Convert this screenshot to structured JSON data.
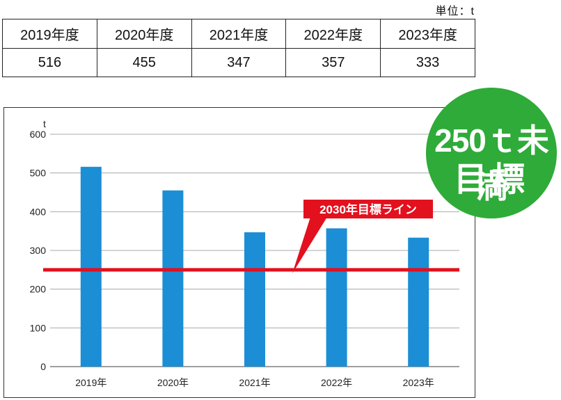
{
  "unit_label": "単位：t",
  "table": {
    "headers": [
      "2019年度",
      "2020年度",
      "2021年度",
      "2022年度",
      "2023年度"
    ],
    "values": [
      "516",
      "455",
      "347",
      "357",
      "333"
    ]
  },
  "badge": {
    "line1": "250ｔ未満",
    "line2": "目標",
    "color": "#2eab38"
  },
  "colors": {
    "bar": "#1b8ed5",
    "target_line": "#e3101e",
    "grid": "#a8a8a8"
  },
  "chart_data": {
    "type": "bar",
    "categories": [
      "2019年",
      "2020年",
      "2021年",
      "2022年",
      "2023年"
    ],
    "values": [
      516,
      455,
      347,
      357,
      333
    ],
    "ylabel": "t",
    "ylim": [
      0,
      600
    ],
    "yticks": [
      0,
      100,
      200,
      300,
      400,
      500,
      600
    ],
    "grid": true,
    "reference_line": {
      "value": 250,
      "label": "2030年目標ライン"
    }
  }
}
